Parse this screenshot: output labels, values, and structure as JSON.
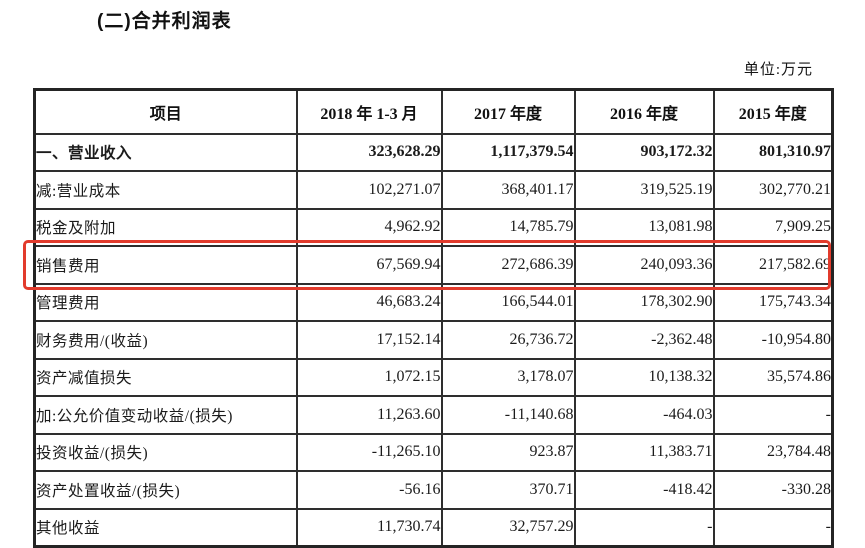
{
  "page": {
    "title": "(二)合并利润表",
    "unit_label": "单位:万元"
  },
  "table": {
    "highlight_color": "#e23b2c",
    "highlighted_row_label": "销售费用",
    "columns": [
      "项目",
      "2018 年 1-3 月",
      "2017 年度",
      "2016 年度",
      "2015 年度"
    ],
    "rows": [
      {
        "label": "一、营业收入",
        "values": [
          "323,628.29",
          "1,117,379.54",
          "903,172.32",
          "801,310.97"
        ],
        "bold": true,
        "highlighted": false
      },
      {
        "label": "减:营业成本",
        "values": [
          "102,271.07",
          "368,401.17",
          "319,525.19",
          "302,770.21"
        ],
        "bold": false,
        "highlighted": false
      },
      {
        "label": "税金及附加",
        "values": [
          "4,962.92",
          "14,785.79",
          "13,081.98",
          "7,909.25"
        ],
        "bold": false,
        "highlighted": false
      },
      {
        "label": "销售费用",
        "values": [
          "67,569.94",
          "272,686.39",
          "240,093.36",
          "217,582.69"
        ],
        "bold": false,
        "highlighted": true
      },
      {
        "label": "管理费用",
        "values": [
          "46,683.24",
          "166,544.01",
          "178,302.90",
          "175,743.34"
        ],
        "bold": false,
        "highlighted": false
      },
      {
        "label": "财务费用/(收益)",
        "values": [
          "17,152.14",
          "26,736.72",
          "-2,362.48",
          "-10,954.80"
        ],
        "bold": false,
        "highlighted": false
      },
      {
        "label": "资产减值损失",
        "values": [
          "1,072.15",
          "3,178.07",
          "10,138.32",
          "35,574.86"
        ],
        "bold": false,
        "highlighted": false
      },
      {
        "label": "加:公允价值变动收益/(损失)",
        "values": [
          "11,263.60",
          "-11,140.68",
          "-464.03",
          "-"
        ],
        "bold": false,
        "highlighted": false
      },
      {
        "label": "投资收益/(损失)",
        "values": [
          "-11,265.10",
          "923.87",
          "11,383.71",
          "23,784.48"
        ],
        "bold": false,
        "highlighted": false
      },
      {
        "label": "资产处置收益/(损失)",
        "values": [
          "-56.16",
          "370.71",
          "-418.42",
          "-330.28"
        ],
        "bold": false,
        "highlighted": false
      },
      {
        "label": "其他收益",
        "values": [
          "11,730.74",
          "32,757.29",
          "-",
          "-"
        ],
        "bold": false,
        "highlighted": false
      }
    ]
  }
}
